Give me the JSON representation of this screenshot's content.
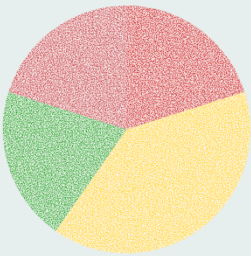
{
  "chart_data": {
    "type": "pie",
    "title": "",
    "legend": "none",
    "start_angle_deg": 0,
    "direction": "clockwise",
    "texture": "speckled-white-grunge",
    "background_color": "#e6efee",
    "slices": [
      {
        "label": "",
        "value": 20.1,
        "color": "#cc0000"
      },
      {
        "label": "",
        "value": 39.6,
        "color": "#ffcc00"
      },
      {
        "label": "",
        "value": 20.2,
        "color": "#009900"
      },
      {
        "label": "",
        "value": 20.1,
        "color": "#c4212b"
      }
    ]
  }
}
